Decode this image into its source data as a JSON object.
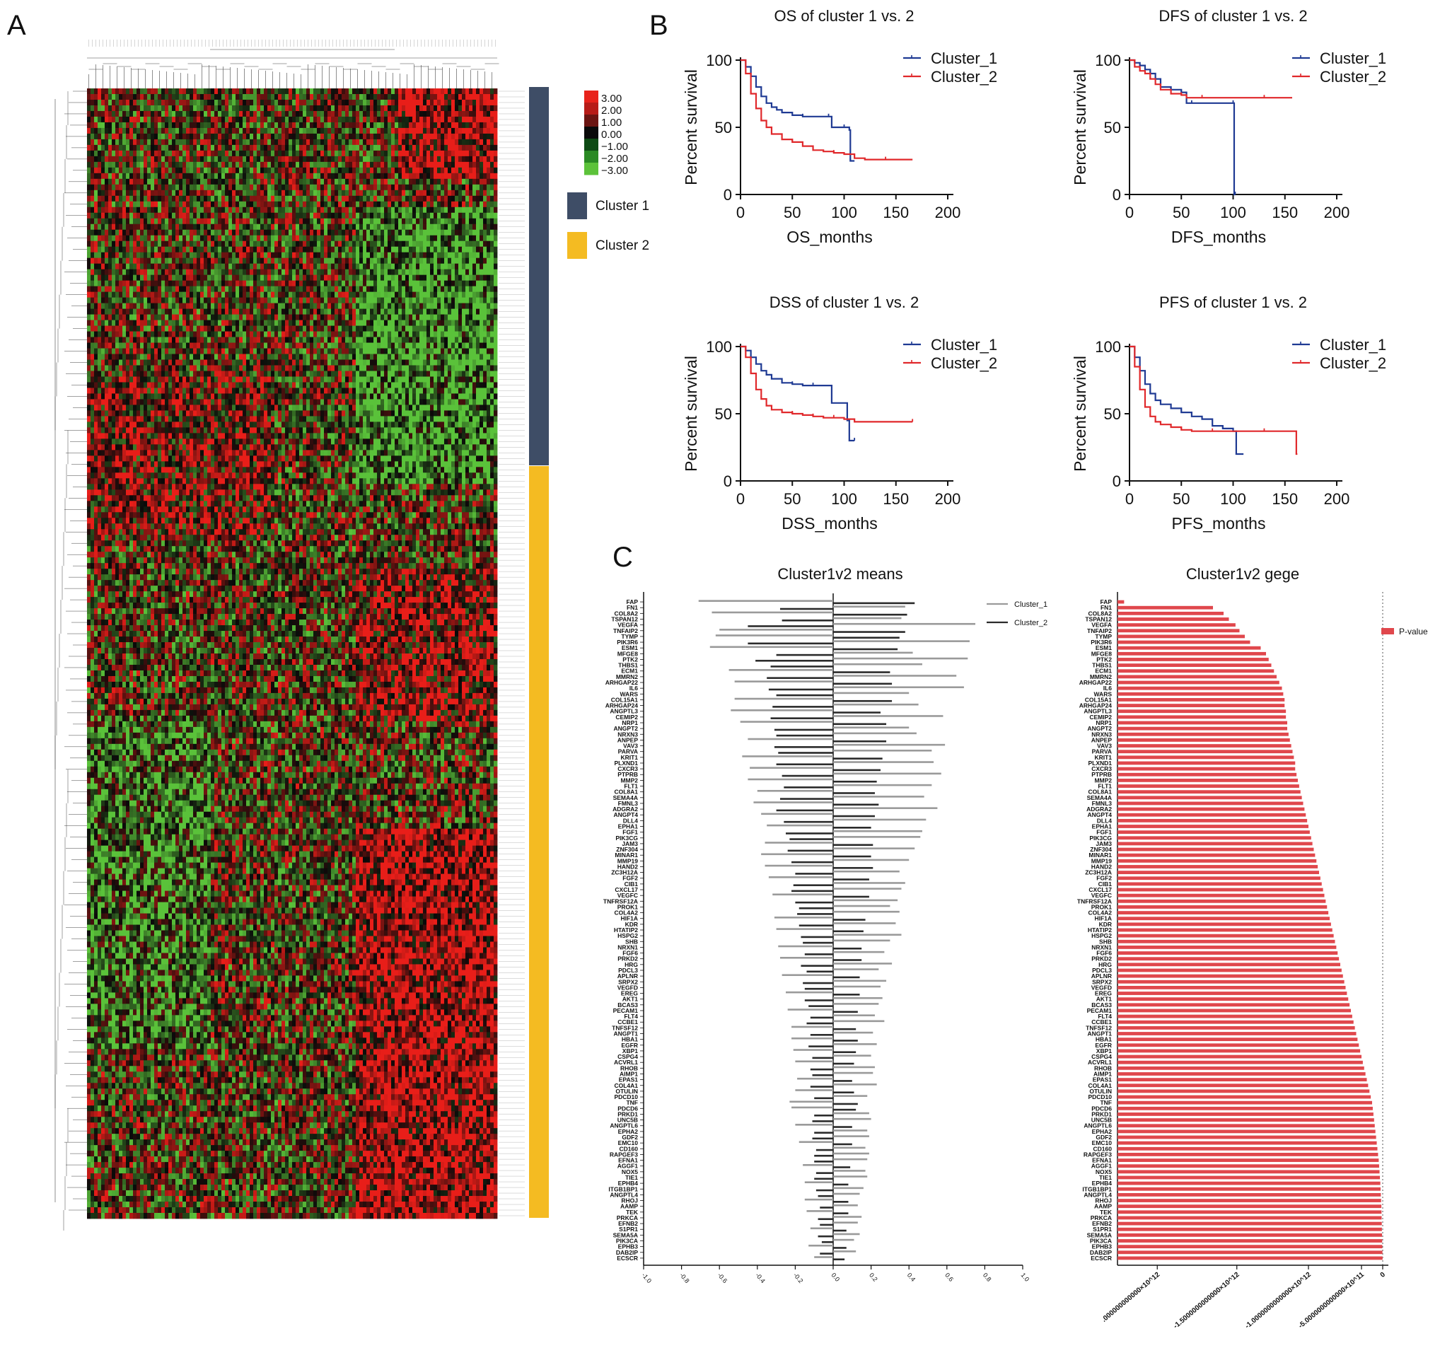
{
  "panels": {
    "a": "A",
    "b": "B",
    "c": "C"
  },
  "heatmap": {
    "colorbar_ticks": [
      "3.00",
      "2.00",
      "1.00",
      "0.00",
      "−1.00",
      "−2.00",
      "−3.00"
    ],
    "cluster_labels": [
      "Cluster 1",
      "Cluster 2"
    ],
    "cluster_colors": {
      "Cluster 1": "#3e4d66",
      "Cluster 2": "#f4bb22"
    },
    "colors": {
      "high": "#e8231b",
      "mid": "#0a0a0a",
      "low": "#5cc23a"
    }
  },
  "chart_data": [
    {
      "type": "line",
      "title": "OS of cluster 1 vs. 2",
      "xlabel": "OS_months",
      "ylabel": "Percent survival",
      "xlim": [
        0,
        200
      ],
      "ylim": [
        0,
        100
      ],
      "xticks": [
        "0",
        "50",
        "100",
        "150",
        "200"
      ],
      "yticks": [
        "0",
        "50",
        "100"
      ],
      "legend": "top-right",
      "series": [
        {
          "name": "Cluster_1",
          "color": "#1f3a93",
          "x": [
            0,
            5,
            10,
            15,
            20,
            25,
            30,
            35,
            40,
            50,
            60,
            70,
            85,
            88,
            100,
            105,
            106,
            110
          ],
          "y": [
            100,
            95,
            88,
            80,
            73,
            68,
            65,
            63,
            61,
            59,
            58,
            58,
            58,
            50,
            50,
            48,
            25,
            25
          ]
        },
        {
          "name": "Cluster_2",
          "color": "#e0282b",
          "x": [
            0,
            5,
            10,
            15,
            20,
            25,
            30,
            40,
            50,
            60,
            70,
            80,
            90,
            100,
            110,
            120,
            140,
            166
          ],
          "y": [
            100,
            90,
            75,
            64,
            55,
            50,
            45,
            41,
            39,
            36,
            33,
            32,
            31,
            30,
            27,
            26,
            26,
            26
          ]
        }
      ]
    },
    {
      "type": "line",
      "title": "DFS of cluster 1 vs. 2",
      "xlabel": "DFS_months",
      "ylabel": "Percent survival",
      "xlim": [
        0,
        200
      ],
      "ylim": [
        0,
        100
      ],
      "xticks": [
        "0",
        "50",
        "100",
        "150",
        "200"
      ],
      "yticks": [
        "0",
        "50",
        "100"
      ],
      "legend": "top-right",
      "series": [
        {
          "name": "Cluster_1",
          "color": "#1f3a93",
          "x": [
            0,
            5,
            10,
            15,
            20,
            25,
            30,
            40,
            50,
            55,
            60,
            80,
            100,
            101,
            102
          ],
          "y": [
            100,
            98,
            96,
            93,
            90,
            86,
            80,
            78,
            76,
            68,
            68,
            68,
            68,
            0,
            0
          ]
        },
        {
          "name": "Cluster_2",
          "color": "#e0282b",
          "x": [
            0,
            5,
            10,
            15,
            20,
            25,
            30,
            40,
            50,
            55,
            70,
            100,
            130,
            157
          ],
          "y": [
            100,
            95,
            92,
            90,
            86,
            82,
            78,
            75,
            74,
            72,
            72,
            72,
            72,
            72
          ]
        }
      ]
    },
    {
      "type": "line",
      "title": "DSS of cluster 1 vs. 2",
      "xlabel": "DSS_months",
      "ylabel": "Percent survival",
      "xlim": [
        0,
        200
      ],
      "ylim": [
        0,
        100
      ],
      "xticks": [
        "0",
        "50",
        "100",
        "150",
        "200"
      ],
      "yticks": [
        "0",
        "50",
        "100"
      ],
      "legend": "top-right",
      "series": [
        {
          "name": "Cluster_1",
          "color": "#1f3a93",
          "x": [
            0,
            5,
            10,
            15,
            20,
            25,
            30,
            40,
            50,
            60,
            70,
            85,
            88,
            100,
            103,
            105,
            110
          ],
          "y": [
            100,
            97,
            92,
            87,
            82,
            79,
            76,
            73,
            72,
            71,
            71,
            71,
            58,
            58,
            45,
            30,
            30
          ]
        },
        {
          "name": "Cluster_2",
          "color": "#e0282b",
          "x": [
            0,
            5,
            10,
            15,
            20,
            25,
            30,
            40,
            50,
            60,
            70,
            80,
            90,
            100,
            110,
            130,
            166
          ],
          "y": [
            100,
            92,
            80,
            68,
            61,
            56,
            53,
            51,
            50,
            49,
            48,
            47,
            47,
            46,
            44,
            44,
            44
          ]
        }
      ]
    },
    {
      "type": "line",
      "title": "PFS of cluster 1 vs. 2",
      "xlabel": "PFS_months",
      "ylabel": "Percent survival",
      "xlim": [
        0,
        200
      ],
      "ylim": [
        0,
        100
      ],
      "xticks": [
        "0",
        "50",
        "100",
        "150",
        "200"
      ],
      "yticks": [
        "0",
        "50",
        "100"
      ],
      "legend": "top-right",
      "series": [
        {
          "name": "Cluster_1",
          "color": "#1f3a93",
          "x": [
            0,
            5,
            10,
            15,
            20,
            25,
            30,
            40,
            50,
            60,
            70,
            80,
            90,
            100,
            103,
            110
          ],
          "y": [
            100,
            92,
            82,
            72,
            65,
            60,
            57,
            54,
            51,
            48,
            46,
            41,
            39,
            37,
            20,
            20
          ]
        },
        {
          "name": "Cluster_2",
          "color": "#e0282b",
          "x": [
            0,
            5,
            10,
            15,
            20,
            25,
            30,
            40,
            50,
            60,
            80,
            100,
            130,
            160,
            161,
            162
          ],
          "y": [
            100,
            85,
            68,
            55,
            48,
            44,
            42,
            40,
            38,
            37,
            37,
            37,
            37,
            37,
            20,
            20
          ]
        }
      ]
    },
    {
      "type": "bar",
      "orientation": "horizontal",
      "title": "Cluster1v2 means",
      "xlim": [
        -1.0,
        1.0
      ],
      "xticks": [
        "-1.0",
        "-0.8",
        "-0.6",
        "-0.4",
        "-0.2",
        "0.0",
        "0.2",
        "0.4",
        "0.6",
        "0.8",
        "1.0"
      ],
      "legend": "top-right",
      "categories": [
        "FAP",
        "FN1",
        "COL8A2",
        "TSPAN12",
        "VEGFA",
        "TNFAIP2",
        "TYMP",
        "PIK3R6",
        "ESM1",
        "MFGE8",
        "PTK2",
        "THBS1",
        "ECM1",
        "MMRN2",
        "ARHGAP22",
        "IL6",
        "WARS",
        "COL15A1",
        "ARHGAP24",
        "ANGPTL3",
        "CEMIP2",
        "NRP1",
        "ANGPT2",
        "NRXN3",
        "ANPEP",
        "VAV3",
        "PARVA",
        "KRIT1",
        "PLXND1",
        "CXCR3",
        "PTPRB",
        "MMP2",
        "FLT1",
        "COL8A1",
        "SEMA4A",
        "FMNL3",
        "ADGRA2",
        "ANGPT4",
        "DLL4",
        "EPHA1",
        "FGF1",
        "PIK3CG",
        "JAM3",
        "ZNF304",
        "MINAR1",
        "MMP19",
        "HAND2",
        "ZC3H12A",
        "FGF2",
        "CIB1",
        "CXCL17",
        "VEGFC",
        "TNFRSF12A",
        "PROK1",
        "COL4A2",
        "HIF1A",
        "KDR",
        "HTATIP2",
        "HSPG2",
        "SHB",
        "NRXN1",
        "FGF6",
        "PRKD2",
        "HRG",
        "PDCL3",
        "APLNR",
        "SRPX2",
        "VEGFD",
        "EREG",
        "AKT1",
        "BCAS3",
        "PECAM1",
        "FLT4",
        "CCBE1",
        "TNFSF12",
        "ANGPT1",
        "HBA1",
        "EGFR",
        "XBP1",
        "CSPG4",
        "ACVRL1",
        "RHOB",
        "AIMP1",
        "EPAS1",
        "COL4A1",
        "OTULIN",
        "PDCD10",
        "TNF",
        "PDCD6",
        "PRKD1",
        "UNC5B",
        "ANGPTL6",
        "EPHA2",
        "GDF2",
        "EMC10",
        "CD160",
        "RAPGEF3",
        "EFNA1",
        "AGGF1",
        "NOX5",
        "TIE1",
        "EPHB4",
        "ITGB1BP1",
        "ANGPTL4",
        "RHOJ",
        "AAMP",
        "TEK",
        "PRKCA",
        "EFNB2",
        "S1PR1",
        "SEMA5A",
        "PIK3CA",
        "EPHB3",
        "DAB2IP",
        "ECSCR"
      ],
      "series": [
        {
          "name": "Cluster_1",
          "color": "#9a9a9a",
          "values": [
            -0.71,
            0.38,
            -0.64,
            0.36,
            0.75,
            -0.6,
            -0.62,
            0.72,
            -0.65,
            0.42,
            0.71,
            0.47,
            -0.55,
            0.65,
            -0.52,
            0.69,
            0.4,
            -0.52,
            0.45,
            -0.54,
            0.58,
            -0.49,
            0.4,
            0.44,
            -0.45,
            0.59,
            0.52,
            -0.48,
            0.53,
            -0.44,
            0.57,
            -0.45,
            0.52,
            -0.4,
            0.48,
            -0.42,
            0.55,
            -0.38,
            0.49,
            -0.35,
            0.47,
            0.46,
            -0.36,
            0.43,
            -0.38,
            0.4,
            -0.36,
            0.35,
            -0.34,
            0.38,
            0.36,
            -0.32,
            0.34,
            0.3,
            0.35,
            -0.31,
            0.33,
            -0.3,
            0.36,
            0.3,
            -0.29,
            0.27,
            -0.28,
            0.31,
            0.24,
            -0.27,
            0.28,
            0.25,
            -0.25,
            0.26,
            0.24,
            -0.24,
            0.22,
            0.27,
            -0.22,
            0.21,
            -0.22,
            0.23,
            -0.21,
            0.2,
            -0.2,
            0.22,
            0.21,
            -0.19,
            0.23,
            -0.2,
            0.18,
            -0.23,
            -0.22,
            0.19,
            0.2,
            -0.2,
            0.18,
            0.19,
            -0.18,
            0.17,
            0.19,
            0.18,
            -0.16,
            0.17,
            0.18,
            -0.15,
            0.16,
            0.14,
            -0.15,
            0.13,
            -0.14,
            0.15,
            0.13,
            -0.12,
            0.14,
            0.11,
            -0.13,
            0.12,
            -0.1
          ]
        },
        {
          "name": "Cluster_2",
          "color": "#2b2b2b",
          "values": [
            0.43,
            -0.28,
            0.39,
            -0.27,
            -0.45,
            0.38,
            0.35,
            -0.45,
            0.34,
            -0.3,
            -0.41,
            -0.33,
            0.3,
            -0.35,
            0.31,
            -0.34,
            -0.3,
            0.31,
            -0.32,
            0.25,
            -0.33,
            0.28,
            -0.31,
            -0.3,
            0.28,
            -0.31,
            -0.29,
            0.26,
            -0.3,
            0.25,
            -0.27,
            0.23,
            -0.26,
            0.22,
            -0.28,
            0.24,
            -0.3,
            0.22,
            -0.26,
            0.2,
            -0.25,
            -0.23,
            0.21,
            -0.24,
            0.2,
            -0.22,
            0.21,
            -0.2,
            0.19,
            -0.21,
            -0.22,
            0.19,
            -0.2,
            -0.18,
            -0.19,
            0.17,
            -0.18,
            0.16,
            -0.17,
            -0.16,
            0.15,
            -0.15,
            0.15,
            -0.17,
            -0.14,
            0.14,
            -0.16,
            -0.15,
            0.14,
            -0.15,
            -0.13,
            0.13,
            -0.12,
            -0.14,
            0.12,
            -0.12,
            0.13,
            -0.13,
            0.12,
            -0.11,
            0.11,
            -0.12,
            -0.11,
            0.1,
            -0.12,
            0.11,
            -0.1,
            0.13,
            0.12,
            -0.1,
            -0.11,
            0.1,
            -0.1,
            -0.11,
            0.1,
            -0.09,
            -0.1,
            -0.1,
            0.09,
            -0.09,
            -0.1,
            0.08,
            -0.09,
            -0.08,
            0.08,
            -0.07,
            0.08,
            -0.08,
            -0.07,
            0.07,
            -0.08,
            -0.06,
            0.07,
            -0.07,
            0.06
          ]
        }
      ]
    },
    {
      "type": "bar",
      "orientation": "horizontal",
      "title": "Cluster1v2 gege",
      "legend": "top-right",
      "xticks": [
        ".000000000000×10^12",
        "-1.5000000000000×10^12",
        "-1.0000000000000×10^12",
        "-5.0000000000000×10^11",
        "0"
      ],
      "xlim": [
        -2000000000000.0,
        0
      ],
      "series": [
        {
          "name": "P-value",
          "color": "#e0474c",
          "values": "same order as categories of Cluster1v2 means",
          "magnitudes_x1e12": [
            -1.95,
            -1.28,
            -1.2,
            -1.16,
            -1.11,
            -1.08,
            -1.04,
            -1.0,
            -0.92,
            -0.88,
            -0.86,
            -0.84,
            -0.82,
            -0.8,
            -0.78,
            -0.76,
            -0.75,
            -0.74,
            -0.74,
            -0.73,
            -0.73,
            -0.72,
            -0.72,
            -0.71,
            -0.7,
            -0.69,
            -0.68,
            -0.67,
            -0.66,
            -0.66,
            -0.65,
            -0.64,
            -0.63,
            -0.62,
            -0.61,
            -0.6,
            -0.59,
            -0.58,
            -0.57,
            -0.56,
            -0.55,
            -0.54,
            -0.53,
            -0.52,
            -0.51,
            -0.5,
            -0.49,
            -0.48,
            -0.47,
            -0.46,
            -0.45,
            -0.44,
            -0.43,
            -0.42,
            -0.41,
            -0.4,
            -0.39,
            -0.38,
            -0.37,
            -0.36,
            -0.35,
            -0.34,
            -0.33,
            -0.32,
            -0.31,
            -0.3,
            -0.29,
            -0.28,
            -0.27,
            -0.26,
            -0.25,
            -0.24,
            -0.23,
            -0.22,
            -0.21,
            -0.2,
            -0.19,
            -0.18,
            -0.17,
            -0.16,
            -0.15,
            -0.14,
            -0.13,
            -0.12,
            -0.11,
            -0.1,
            -0.09,
            -0.08,
            -0.075,
            -0.07,
            -0.065,
            -0.06,
            -0.055,
            -0.05,
            -0.045,
            -0.04,
            -0.035,
            -0.03,
            -0.027,
            -0.024,
            -0.021,
            -0.018,
            -0.016,
            -0.014,
            -0.012,
            -0.01,
            -0.009,
            -0.008,
            -0.007,
            -0.006,
            -0.005,
            -0.004,
            -0.003,
            -0.002,
            -0.001
          ]
        }
      ]
    }
  ]
}
